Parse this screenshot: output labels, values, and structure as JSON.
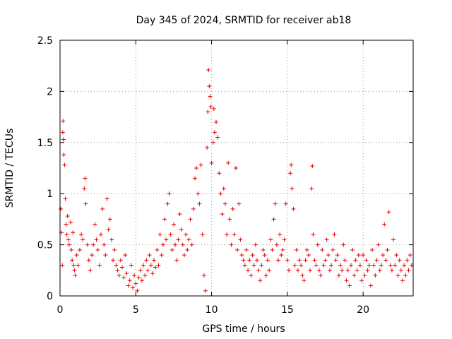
{
  "chart_data": {
    "type": "scatter",
    "title": "Day 345 of 2024, SRMTID for receiver ab18",
    "xlabel": "GPS time / hours",
    "ylabel": "SRMTID / TECUs",
    "xlim": [
      0,
      23.3
    ],
    "ylim": [
      0,
      2.5
    ],
    "xticks": [
      0,
      5,
      10,
      15,
      20
    ],
    "xtick_labels": [
      "0",
      "5",
      "10",
      "15",
      "20"
    ],
    "yticks": [
      0,
      0.5,
      1,
      1.5,
      2,
      2.5
    ],
    "ytick_labels": [
      "0",
      "0.5",
      "1",
      "1.5",
      "2",
      "2.5"
    ],
    "grid": true,
    "marker": "+",
    "color": "#e60000",
    "series": [
      {
        "name": "SRMTID",
        "points": [
          [
            0.05,
            0.85
          ],
          [
            0.1,
            0.62
          ],
          [
            0.15,
            0.3
          ],
          [
            0.18,
            1.6
          ],
          [
            0.2,
            1.71
          ],
          [
            0.22,
            1.53
          ],
          [
            0.25,
            1.38
          ],
          [
            0.3,
            1.28
          ],
          [
            0.35,
            0.95
          ],
          [
            0.4,
            0.7
          ],
          [
            0.45,
            0.6
          ],
          [
            0.5,
            0.78
          ],
          [
            0.55,
            0.55
          ],
          [
            0.6,
            0.5
          ],
          [
            0.7,
            0.72
          ],
          [
            0.75,
            0.45
          ],
          [
            0.8,
            0.35
          ],
          [
            0.85,
            0.62
          ],
          [
            0.9,
            0.3
          ],
          [
            0.95,
            0.25
          ],
          [
            1.0,
            0.2
          ],
          [
            1.1,
            0.4
          ],
          [
            1.2,
            0.3
          ],
          [
            1.3,
            0.45
          ],
          [
            1.4,
            0.6
          ],
          [
            1.5,
            0.55
          ],
          [
            1.6,
            1.05
          ],
          [
            1.65,
            1.15
          ],
          [
            1.7,
            0.9
          ],
          [
            1.8,
            0.5
          ],
          [
            1.9,
            0.35
          ],
          [
            2.0,
            0.25
          ],
          [
            2.1,
            0.4
          ],
          [
            2.2,
            0.5
          ],
          [
            2.3,
            0.7
          ],
          [
            2.4,
            0.55
          ],
          [
            2.5,
            0.45
          ],
          [
            2.6,
            0.3
          ],
          [
            2.7,
            0.6
          ],
          [
            2.8,
            0.85
          ],
          [
            2.9,
            0.5
          ],
          [
            3.0,
            0.4
          ],
          [
            3.1,
            0.95
          ],
          [
            3.2,
            0.65
          ],
          [
            3.3,
            0.75
          ],
          [
            3.4,
            0.55
          ],
          [
            3.5,
            0.35
          ],
          [
            3.6,
            0.45
          ],
          [
            3.7,
            0.3
          ],
          [
            3.8,
            0.25
          ],
          [
            3.9,
            0.2
          ],
          [
            4.0,
            0.35
          ],
          [
            4.1,
            0.28
          ],
          [
            4.2,
            0.18
          ],
          [
            4.3,
            0.4
          ],
          [
            4.4,
            0.22
          ],
          [
            4.5,
            0.1
          ],
          [
            4.6,
            0.15
          ],
          [
            4.7,
            0.3
          ],
          [
            4.8,
            0.08
          ],
          [
            4.9,
            0.2
          ],
          [
            5.0,
            0.12
          ],
          [
            5.1,
            0.05
          ],
          [
            5.2,
            0.18
          ],
          [
            5.3,
            0.25
          ],
          [
            5.4,
            0.15
          ],
          [
            5.5,
            0.3
          ],
          [
            5.6,
            0.2
          ],
          [
            5.7,
            0.35
          ],
          [
            5.8,
            0.25
          ],
          [
            5.9,
            0.4
          ],
          [
            6.0,
            0.3
          ],
          [
            6.1,
            0.22
          ],
          [
            6.2,
            0.35
          ],
          [
            6.3,
            0.28
          ],
          [
            6.4,
            0.45
          ],
          [
            6.5,
            0.3
          ],
          [
            6.6,
            0.6
          ],
          [
            6.7,
            0.4
          ],
          [
            6.8,
            0.5
          ],
          [
            6.9,
            0.75
          ],
          [
            7.0,
            0.55
          ],
          [
            7.1,
            0.9
          ],
          [
            7.2,
            1.0
          ],
          [
            7.3,
            0.6
          ],
          [
            7.4,
            0.45
          ],
          [
            7.5,
            0.7
          ],
          [
            7.6,
            0.5
          ],
          [
            7.7,
            0.35
          ],
          [
            7.8,
            0.55
          ],
          [
            7.9,
            0.8
          ],
          [
            8.0,
            0.65
          ],
          [
            8.1,
            0.5
          ],
          [
            8.2,
            0.4
          ],
          [
            8.3,
            0.6
          ],
          [
            8.4,
            0.45
          ],
          [
            8.5,
            0.55
          ],
          [
            8.6,
            0.75
          ],
          [
            8.7,
            0.5
          ],
          [
            8.8,
            0.85
          ],
          [
            8.9,
            1.15
          ],
          [
            9.0,
            1.25
          ],
          [
            9.1,
            1.0
          ],
          [
            9.2,
            0.9
          ],
          [
            9.3,
            1.28
          ],
          [
            9.4,
            0.6
          ],
          [
            9.5,
            0.2
          ],
          [
            9.6,
            0.05
          ],
          [
            9.7,
            1.45
          ],
          [
            9.75,
            1.8
          ],
          [
            9.8,
            2.21
          ],
          [
            9.85,
            2.05
          ],
          [
            9.9,
            1.95
          ],
          [
            9.95,
            1.85
          ],
          [
            10.0,
            1.3
          ],
          [
            10.1,
            1.5
          ],
          [
            10.15,
            1.83
          ],
          [
            10.2,
            1.6
          ],
          [
            10.3,
            1.7
          ],
          [
            10.4,
            1.55
          ],
          [
            10.5,
            1.2
          ],
          [
            10.6,
            1.0
          ],
          [
            10.7,
            0.8
          ],
          [
            10.8,
            1.05
          ],
          [
            10.9,
            0.9
          ],
          [
            11.0,
            0.6
          ],
          [
            11.1,
            1.3
          ],
          [
            11.2,
            0.75
          ],
          [
            11.3,
            0.5
          ],
          [
            11.4,
            0.85
          ],
          [
            11.5,
            0.6
          ],
          [
            11.6,
            1.25
          ],
          [
            11.7,
            0.45
          ],
          [
            11.8,
            0.9
          ],
          [
            11.9,
            0.55
          ],
          [
            12.0,
            0.4
          ],
          [
            12.1,
            0.35
          ],
          [
            12.2,
            0.3
          ],
          [
            12.3,
            0.45
          ],
          [
            12.4,
            0.25
          ],
          [
            12.5,
            0.35
          ],
          [
            12.6,
            0.2
          ],
          [
            12.7,
            0.4
          ],
          [
            12.8,
            0.3
          ],
          [
            12.9,
            0.5
          ],
          [
            13.0,
            0.35
          ],
          [
            13.1,
            0.25
          ],
          [
            13.2,
            0.15
          ],
          [
            13.3,
            0.3
          ],
          [
            13.4,
            0.45
          ],
          [
            13.5,
            0.4
          ],
          [
            13.6,
            0.2
          ],
          [
            13.7,
            0.35
          ],
          [
            13.8,
            0.25
          ],
          [
            13.9,
            0.55
          ],
          [
            14.0,
            0.45
          ],
          [
            14.1,
            0.75
          ],
          [
            14.2,
            0.9
          ],
          [
            14.3,
            0.5
          ],
          [
            14.4,
            0.35
          ],
          [
            14.5,
            0.6
          ],
          [
            14.6,
            0.4
          ],
          [
            14.7,
            0.45
          ],
          [
            14.8,
            0.55
          ],
          [
            14.9,
            0.9
          ],
          [
            15.0,
            0.35
          ],
          [
            15.1,
            0.25
          ],
          [
            15.2,
            1.2
          ],
          [
            15.25,
            1.28
          ],
          [
            15.3,
            1.05
          ],
          [
            15.4,
            0.85
          ],
          [
            15.5,
            0.3
          ],
          [
            15.6,
            0.45
          ],
          [
            15.7,
            0.25
          ],
          [
            15.8,
            0.35
          ],
          [
            15.9,
            0.3
          ],
          [
            16.0,
            0.2
          ],
          [
            16.1,
            0.15
          ],
          [
            16.2,
            0.35
          ],
          [
            16.3,
            0.45
          ],
          [
            16.4,
            0.4
          ],
          [
            16.5,
            0.25
          ],
          [
            16.6,
            1.05
          ],
          [
            16.65,
            1.27
          ],
          [
            16.7,
            0.6
          ],
          [
            16.8,
            0.35
          ],
          [
            16.9,
            0.3
          ],
          [
            17.0,
            0.5
          ],
          [
            17.1,
            0.25
          ],
          [
            17.2,
            0.2
          ],
          [
            17.3,
            0.45
          ],
          [
            17.4,
            0.3
          ],
          [
            17.5,
            0.35
          ],
          [
            17.6,
            0.55
          ],
          [
            17.7,
            0.4
          ],
          [
            17.8,
            0.25
          ],
          [
            17.9,
            0.3
          ],
          [
            18.0,
            0.45
          ],
          [
            18.1,
            0.6
          ],
          [
            18.2,
            0.35
          ],
          [
            18.3,
            0.4
          ],
          [
            18.4,
            0.2
          ],
          [
            18.5,
            0.3
          ],
          [
            18.6,
            0.25
          ],
          [
            18.7,
            0.5
          ],
          [
            18.8,
            0.35
          ],
          [
            18.9,
            0.15
          ],
          [
            19.0,
            0.25
          ],
          [
            19.1,
            0.1
          ],
          [
            19.2,
            0.3
          ],
          [
            19.3,
            0.45
          ],
          [
            19.4,
            0.2
          ],
          [
            19.5,
            0.35
          ],
          [
            19.6,
            0.25
          ],
          [
            19.7,
            0.4
          ],
          [
            19.8,
            0.3
          ],
          [
            19.9,
            0.15
          ],
          [
            20.0,
            0.4
          ],
          [
            20.1,
            0.2
          ],
          [
            20.2,
            0.35
          ],
          [
            20.3,
            0.25
          ],
          [
            20.4,
            0.3
          ],
          [
            20.5,
            0.1
          ],
          [
            20.6,
            0.45
          ],
          [
            20.7,
            0.3
          ],
          [
            20.8,
            0.2
          ],
          [
            20.9,
            0.35
          ],
          [
            21.0,
            0.5
          ],
          [
            21.1,
            0.25
          ],
          [
            21.2,
            0.3
          ],
          [
            21.3,
            0.4
          ],
          [
            21.4,
            0.7
          ],
          [
            21.5,
            0.35
          ],
          [
            21.6,
            0.45
          ],
          [
            21.7,
            0.82
          ],
          [
            21.8,
            0.3
          ],
          [
            21.9,
            0.25
          ],
          [
            22.0,
            0.55
          ],
          [
            22.1,
            0.3
          ],
          [
            22.2,
            0.4
          ],
          [
            22.3,
            0.2
          ],
          [
            22.4,
            0.35
          ],
          [
            22.5,
            0.25
          ],
          [
            22.6,
            0.15
          ],
          [
            22.7,
            0.3
          ],
          [
            22.8,
            0.2
          ],
          [
            22.9,
            0.35
          ],
          [
            23.0,
            0.25
          ],
          [
            23.1,
            0.4
          ],
          [
            23.2,
            0.3
          ]
        ]
      }
    ]
  }
}
